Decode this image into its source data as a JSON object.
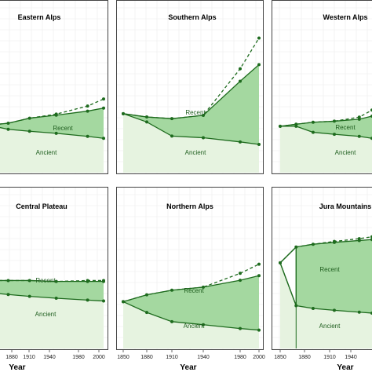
{
  "chart_data": {
    "type": "area",
    "x_ticks": [
      1850,
      1880,
      1910,
      1940,
      1980,
      2000
    ],
    "xlabel": "Year",
    "ylabel": "",
    "ylim": [
      0,
      10
    ],
    "grid": true,
    "colors": {
      "ancient_fill": "#e6f3e0",
      "recent_fill": "#a4d8a0",
      "line": "#1e6b1e",
      "gap_fill": "#ffffff"
    },
    "panels": [
      {
        "title": "Eastern Alps",
        "recent_label": "Recent",
        "ancient_label": "Ancient",
        "x": [
          1850,
          1880,
          1910,
          1940,
          1980,
          2000
        ],
        "ancient": [
          4.7,
          4.3,
          4.1,
          3.9,
          3.6,
          3.4
        ],
        "total": [
          4.7,
          4.9,
          5.4,
          5.7,
          6.1,
          6.4
        ],
        "projection": [
          4.7,
          4.9,
          5.4,
          5.8,
          6.6,
          7.3
        ]
      },
      {
        "title": "Southern Alps",
        "recent_label": "Recent",
        "ancient_label": "Ancient",
        "x": [
          1850,
          1880,
          1910,
          1940,
          1980,
          2000
        ],
        "ancient": [
          7.1,
          6.1,
          4.4,
          4.2,
          3.7,
          3.4
        ],
        "total": [
          7.1,
          6.7,
          6.5,
          6.9,
          11.0,
          13.0
        ],
        "projection": [
          7.1,
          6.7,
          6.5,
          6.9,
          12.5,
          16.2
        ]
      },
      {
        "title": "Western Alps",
        "recent_label": "Recent",
        "ancient_label": "Ancient",
        "x": [
          1850,
          1880,
          1910,
          1940,
          1980,
          2000
        ],
        "ancient": [
          4.6,
          4.6,
          4.0,
          3.8,
          3.6,
          3.4
        ],
        "total": [
          4.6,
          4.8,
          5.0,
          5.1,
          5.3,
          5.6
        ],
        "projection": [
          4.6,
          4.8,
          5.0,
          5.1,
          5.5,
          6.2
        ]
      },
      {
        "title": "Central Plateau",
        "recent_label": "Recent",
        "ancient_label": "Ancient",
        "x": [
          1850,
          1880,
          1910,
          1940,
          1980,
          2000
        ],
        "ancient": [
          6.0,
          5.8,
          5.6,
          5.4,
          5.2,
          5.1
        ],
        "total": [
          7.3,
          7.3,
          7.3,
          7.2,
          7.2,
          7.2
        ],
        "projection": [
          7.3,
          7.3,
          7.3,
          7.2,
          7.3,
          7.3
        ]
      },
      {
        "title": "Northern Alps",
        "recent_label": "Recent",
        "ancient_label": "Ancient",
        "x": [
          1850,
          1880,
          1910,
          1940,
          1980,
          2000
        ],
        "ancient": [
          6.1,
          4.7,
          3.5,
          3.1,
          2.6,
          2.4
        ],
        "total": [
          6.1,
          7.0,
          7.6,
          8.0,
          8.9,
          9.5
        ],
        "projection": [
          6.1,
          7.0,
          7.6,
          8.0,
          9.8,
          11.0
        ]
      },
      {
        "title": "Jura Mountains",
        "recent_label": "Recent",
        "ancient_label": "Ancient",
        "x": [
          1850,
          1880,
          1910,
          1940,
          1980,
          2000
        ],
        "ancient": [
          9.2,
          4.6,
          4.3,
          4.1,
          3.9,
          3.8
        ],
        "total": [
          9.2,
          10.9,
          11.2,
          11.4,
          11.6,
          11.7
        ],
        "projection": [
          9.2,
          10.9,
          11.2,
          11.5,
          11.8,
          12.0
        ]
      }
    ]
  }
}
